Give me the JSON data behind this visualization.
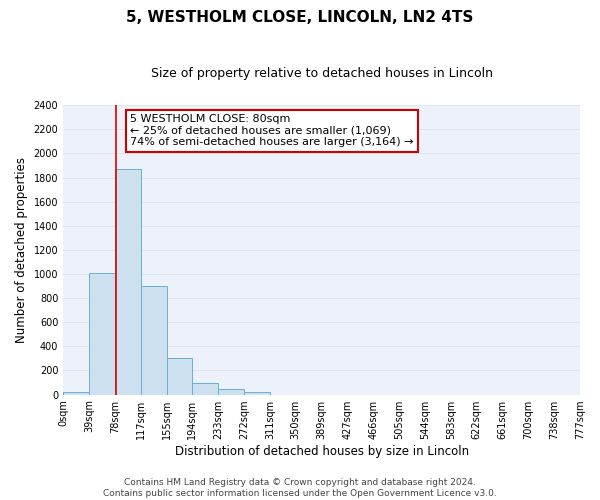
{
  "title": "5, WESTHOLM CLOSE, LINCOLN, LN2 4TS",
  "subtitle": "Size of property relative to detached houses in Lincoln",
  "xlabel": "Distribution of detached houses by size in Lincoln",
  "ylabel": "Number of detached properties",
  "bin_labels": [
    "0sqm",
    "39sqm",
    "78sqm",
    "117sqm",
    "155sqm",
    "194sqm",
    "233sqm",
    "272sqm",
    "311sqm",
    "350sqm",
    "389sqm",
    "427sqm",
    "466sqm",
    "505sqm",
    "544sqm",
    "583sqm",
    "622sqm",
    "661sqm",
    "700sqm",
    "738sqm",
    "777sqm"
  ],
  "bar_values": [
    20,
    1010,
    1870,
    900,
    300,
    100,
    45,
    20,
    0,
    0,
    0,
    0,
    0,
    0,
    0,
    0,
    0,
    0,
    0,
    0
  ],
  "bar_color": "#cce0f0",
  "bar_edge_color": "#6aaed6",
  "red_line_x": 2.05,
  "red_line_color": "#dd0000",
  "ylim": [
    0,
    2400
  ],
  "yticks": [
    0,
    200,
    400,
    600,
    800,
    1000,
    1200,
    1400,
    1600,
    1800,
    2000,
    2200,
    2400
  ],
  "annotation_text_line1": "5 WESTHOLM CLOSE: 80sqm",
  "annotation_text_line2": "← 25% of detached houses are smaller (1,069)",
  "annotation_text_line3": "74% of semi-detached houses are larger (3,164) →",
  "footer_text": "Contains HM Land Registry data © Crown copyright and database right 2024.\nContains public sector information licensed under the Open Government Licence v3.0.",
  "grid_color": "#dde5f0",
  "bg_color": "#edf2fa",
  "title_fontsize": 11,
  "subtitle_fontsize": 9,
  "axis_label_fontsize": 8.5,
  "tick_fontsize": 7,
  "footer_fontsize": 6.5,
  "annotation_fontsize": 8
}
